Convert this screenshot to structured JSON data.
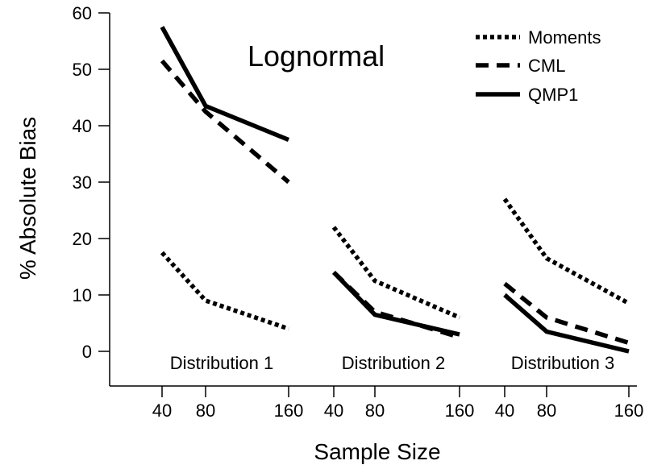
{
  "chart_data": {
    "type": "line",
    "title": "Lognormal",
    "xlabel": "Sample Size",
    "ylabel": "% Absolute Bias",
    "ylim": [
      0,
      60
    ],
    "yticks": [
      "0",
      "10",
      "20",
      "30",
      "40",
      "50",
      "60"
    ],
    "grid": false,
    "legend_position": "top-right",
    "groups": [
      {
        "label": "Distribution 1",
        "x_ticks": [
          "40",
          "80",
          "160"
        ],
        "series": [
          {
            "name": "Moments",
            "style": "dotted",
            "values": [
              17.5,
              9.0,
              4.0
            ]
          },
          {
            "name": "CML",
            "style": "dashed",
            "values": [
              51.5,
              42.5,
              30.0
            ]
          },
          {
            "name": "QMP1",
            "style": "solid",
            "values": [
              57.5,
              43.5,
              37.5
            ]
          }
        ]
      },
      {
        "label": "Distribution 2",
        "x_ticks": [
          "40",
          "80",
          "160"
        ],
        "series": [
          {
            "name": "Moments",
            "style": "dotted",
            "values": [
              22.0,
              12.5,
              6.0
            ]
          },
          {
            "name": "CML",
            "style": "dashed",
            "values": [
              14.0,
              7.0,
              2.5
            ]
          },
          {
            "name": "QMP1",
            "style": "solid",
            "values": [
              14.0,
              6.5,
              3.0
            ]
          }
        ]
      },
      {
        "label": "Distribution 3",
        "x_ticks": [
          "40",
          "80",
          "160"
        ],
        "series": [
          {
            "name": "Moments",
            "style": "dotted",
            "values": [
              27.0,
              16.5,
              8.5
            ]
          },
          {
            "name": "CML",
            "style": "dashed",
            "values": [
              12.0,
              6.0,
              1.5
            ]
          },
          {
            "name": "QMP1",
            "style": "solid",
            "values": [
              10.0,
              3.5,
              0.0
            ]
          }
        ]
      }
    ],
    "legend": [
      {
        "name": "Moments",
        "style": "dotted"
      },
      {
        "name": "CML",
        "style": "dashed"
      },
      {
        "name": "QMP1",
        "style": "solid"
      }
    ],
    "colors": {
      "line": "#000000",
      "background": "#ffffff"
    }
  }
}
